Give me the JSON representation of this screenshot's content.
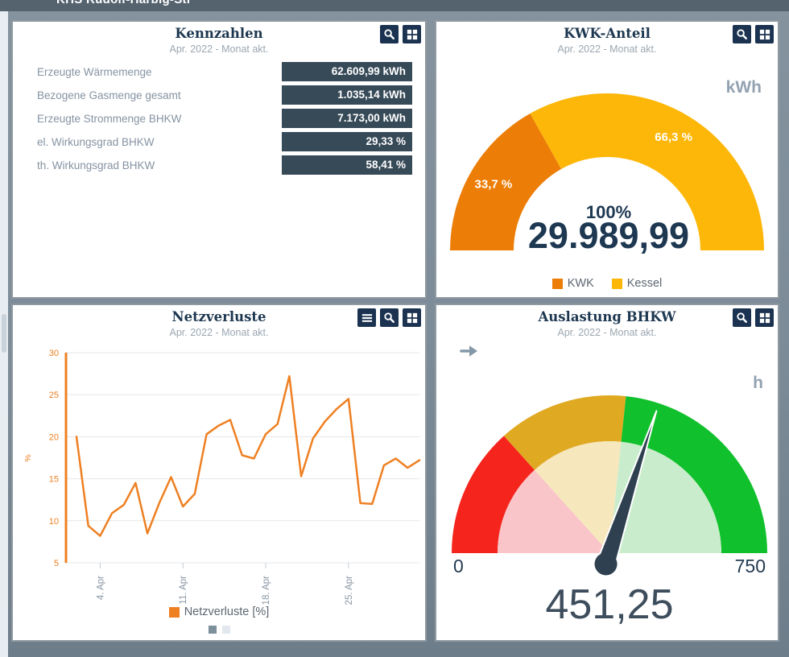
{
  "window": {
    "titlebar_text": "KHS Rudolf-Harbig-Str"
  },
  "panels": {
    "kennzahlen": {
      "title": "Kennzahlen",
      "subtitle": "Apr. 2022 - Monat akt.",
      "rows": [
        {
          "label": "Erzeugte Wärmemenge",
          "value": "62.609,99 kWh"
        },
        {
          "label": "Bezogene Gasmenge gesamt",
          "value": "1.035,14 kWh"
        },
        {
          "label": "Erzeugte Strommenge BHKW",
          "value": "7.173,00 kWh"
        },
        {
          "label": "el. Wirkungsgrad BHKW",
          "value": "29,33 %"
        },
        {
          "label": "th. Wirkungsgrad BHKW",
          "value": "58,41 %"
        }
      ]
    },
    "kwk_anteil": {
      "title": "KWK-Anteil",
      "subtitle": "Apr. 2022 - Monat akt."
    },
    "netzverluste": {
      "title": "Netzverluste",
      "subtitle": "Apr. 2022 - Monat akt.",
      "pagination": {
        "pages": 2,
        "active": 0
      }
    },
    "auslastung": {
      "title": "Auslastung BHKW",
      "subtitle": "Apr. 2022 - Monat akt."
    }
  },
  "chart_data": [
    {
      "id": "kwk-anteil-donut",
      "type": "pie",
      "title": "KWK-Anteil",
      "unit": "kWh",
      "center_top": "100%",
      "center_value": "29.989,99",
      "legend_position": "bottom",
      "slices": [
        {
          "name": "KWK",
          "percent": 33.7,
          "label": "33,7 %",
          "color": "#ec7e08"
        },
        {
          "name": "Kessel",
          "percent": 66.3,
          "label": "66,3 %",
          "color": "#fdb709"
        }
      ]
    },
    {
      "id": "netzverluste-line",
      "type": "line",
      "title": "Netzverluste",
      "legend_label": "Netzverluste [%]",
      "color": "#ee8022",
      "ylabel": "%",
      "ylim": [
        5,
        30
      ],
      "yticks": [
        5,
        10,
        15,
        20,
        25,
        30
      ],
      "grid": true,
      "x_ticks": [
        {
          "index": 2,
          "label": "4. Apr"
        },
        {
          "index": 9,
          "label": "11. Apr"
        },
        {
          "index": 16,
          "label": "18. Apr"
        },
        {
          "index": 23,
          "label": "25. Apr"
        }
      ],
      "values": [
        20.0,
        9.4,
        8.2,
        10.9,
        11.9,
        14.5,
        8.5,
        12.1,
        15.2,
        11.7,
        13.2,
        20.3,
        21.3,
        22.0,
        17.8,
        17.4,
        20.3,
        21.5,
        27.2,
        15.3,
        19.8,
        21.8,
        23.3,
        24.5,
        12.1,
        12.0,
        16.6,
        17.4,
        16.3,
        17.2
      ]
    },
    {
      "id": "auslastung-gauge",
      "type": "gauge",
      "title": "Auslastung BHKW",
      "unit": "h",
      "min": 0,
      "max": 750,
      "min_label": "0",
      "max_label": "750",
      "value": 451.25,
      "value_label": "451,25",
      "needle_color": "#2f4050",
      "bands": [
        {
          "from": 0,
          "to": 200,
          "color": "#f5241c",
          "inner_color": "#fac5c8"
        },
        {
          "from": 200,
          "to": 400,
          "color": "#e0a922",
          "inner_color": "#f6e7bd"
        },
        {
          "from": 400,
          "to": 750,
          "color": "#10c02c",
          "inner_color": "#c9edcc"
        }
      ]
    }
  ]
}
